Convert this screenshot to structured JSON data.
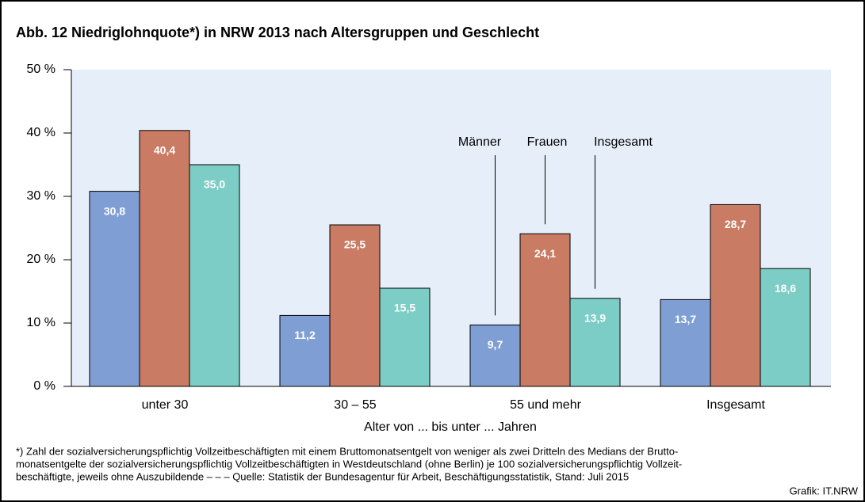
{
  "chart_data": {
    "type": "bar",
    "title": "Abb. 12   Niedriglohnquote*) in NRW 2013 nach Altersgruppen und Geschlecht",
    "categories": [
      "unter 30",
      "30 – 55",
      "55 und mehr",
      "Insgesamt"
    ],
    "series": [
      {
        "name": "Männer",
        "color": "#7f9fd4",
        "values": [
          30.8,
          11.2,
          9.7,
          13.7
        ],
        "value_labels": [
          "30,8",
          "11,2",
          "9,7",
          "13,7"
        ]
      },
      {
        "name": "Frauen",
        "color": "#c97b63",
        "values": [
          40.4,
          25.5,
          24.1,
          28.7
        ],
        "value_labels": [
          "40,4",
          "25,5",
          "24,1",
          "28,7"
        ]
      },
      {
        "name": "Insgesamt",
        "color": "#7ccdc5",
        "values": [
          35.0,
          15.5,
          13.9,
          18.6
        ],
        "value_labels": [
          "35,0",
          "15,5",
          "13,9",
          "18,6"
        ]
      }
    ],
    "ylim": [
      0,
      50
    ],
    "yticks": [
      {
        "value": 0,
        "label": "0 %"
      },
      {
        "value": 10,
        "label": "10 %"
      },
      {
        "value": 20,
        "label": "20 %"
      },
      {
        "value": 30,
        "label": "30 %"
      },
      {
        "value": 40,
        "label": "40 %"
      },
      {
        "value": 50,
        "label": "50 %"
      }
    ],
    "xlabel": "Alter von ... bis unter ... Jahren",
    "grid": false,
    "footnote": [
      "*) Zahl der sozialversicherungspflichtig Vollzeitbeschäftigten mit einem Bruttomonatsentgelt von weniger als zwei Dritteln des Medians der Brutto-",
      "monatsentgelte der sozialversicherungspflichtig Vollzeitbeschäftigten in Westdeutschland (ohne Berlin) je 100 sozialversicherungspflichtig Vollzeit-",
      "beschäftigte, jeweils ohne Auszubildende – – – Quelle: Statistik der Bundesagentur für Arbeit, Beschäftigungsstatistik, Stand: Juli 2015"
    ],
    "source": "Grafik: IT.NRW"
  }
}
